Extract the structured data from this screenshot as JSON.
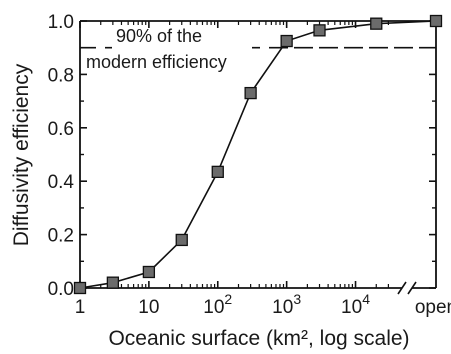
{
  "chart_data": {
    "type": "scatter",
    "xlabel": "Oceanic surface (km², log scale)",
    "ylabel": "Diffusivity efficiency",
    "x_scale": "log",
    "xlim": [
      1,
      40000
    ],
    "ylim": [
      0,
      1.0
    ],
    "x_ticks": [
      {
        "value": 1,
        "label": "1"
      },
      {
        "value": 10,
        "label": "10"
      },
      {
        "value": 100,
        "base": "10",
        "exp": "2"
      },
      {
        "value": 1000,
        "base": "10",
        "exp": "3"
      },
      {
        "value": 10000,
        "base": "10",
        "exp": "4"
      }
    ],
    "x_break_label": "open",
    "y_ticks": [
      "0.0",
      "0.2",
      "0.4",
      "0.6",
      "0.8",
      "1.0"
    ],
    "y_tick_values": [
      0,
      0.2,
      0.4,
      0.6,
      0.8,
      1.0
    ],
    "grid": false,
    "series": [
      {
        "marker": "square",
        "connected": true,
        "marker_color": "#6b6b6b",
        "points": [
          {
            "x": 1,
            "y": 0.0
          },
          {
            "x": 3,
            "y": 0.02
          },
          {
            "x": 10,
            "y": 0.06
          },
          {
            "x": 30,
            "y": 0.18
          },
          {
            "x": 100,
            "y": 0.435
          },
          {
            "x": 300,
            "y": 0.73
          },
          {
            "x": 1000,
            "y": 0.925
          },
          {
            "x": 3000,
            "y": 0.965
          },
          {
            "x": 20000,
            "y": 0.99
          },
          {
            "x": "open",
            "y": 1.0
          }
        ]
      }
    ],
    "reference_line": {
      "y": 0.9,
      "style": "dashed",
      "annotation": [
        "90% of the",
        "modern efficiency"
      ]
    }
  }
}
